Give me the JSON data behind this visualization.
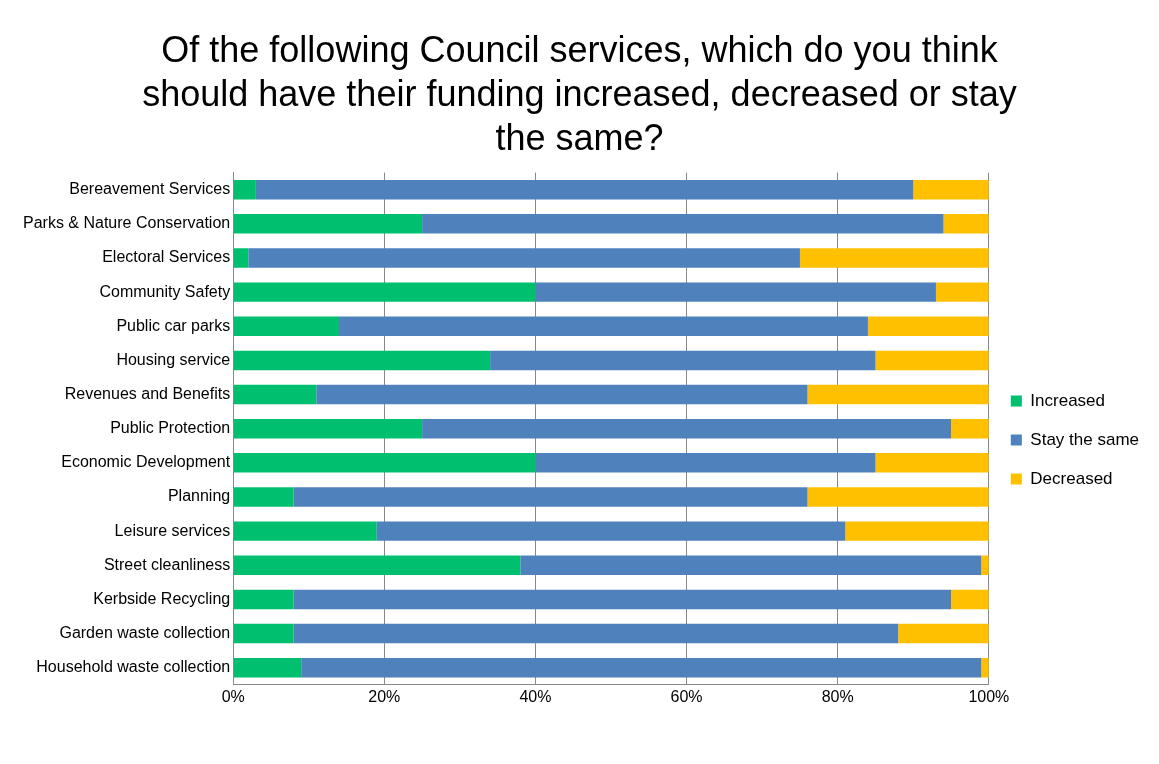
{
  "chart_data": {
    "type": "bar",
    "orientation": "horizontal",
    "stacked": true,
    "title": "Of the following Council services, which do you think should have their funding increased, decreased or stay the same?",
    "categories": [
      "Bereavement Services",
      "Parks & Nature Conservation",
      "Electoral Services",
      "Community Safety",
      "Public car parks",
      "Housing service",
      "Revenues and Benefits",
      "Public Protection",
      "Economic Development",
      "Planning",
      "Leisure services",
      "Street cleanliness",
      "Kerbside Recycling",
      "Garden waste collection",
      "Household waste collection"
    ],
    "series": [
      {
        "name": "Increased",
        "color": "#00c070",
        "values": [
          3,
          25,
          2,
          40,
          14,
          34,
          11,
          25,
          40,
          8,
          19,
          38,
          8,
          8,
          9
        ]
      },
      {
        "name": "Stay the same",
        "color": "#4f81bd",
        "values": [
          87,
          69,
          73,
          53,
          70,
          51,
          65,
          70,
          45,
          68,
          62,
          61,
          87,
          80,
          90
        ]
      },
      {
        "name": "Decreased",
        "color": "#ffc000",
        "values": [
          10,
          6,
          25,
          7,
          16,
          15,
          24,
          5,
          15,
          24,
          19,
          1,
          5,
          12,
          1
        ]
      }
    ],
    "xlim": [
      0,
      100
    ],
    "xticks": [
      {
        "value": 0,
        "label": "0%"
      },
      {
        "value": 20,
        "label": "20%"
      },
      {
        "value": 40,
        "label": "40%"
      },
      {
        "value": 60,
        "label": "60%"
      },
      {
        "value": 80,
        "label": "80%"
      },
      {
        "value": 100,
        "label": "100%"
      }
    ],
    "grid": "x",
    "legend": "right"
  }
}
